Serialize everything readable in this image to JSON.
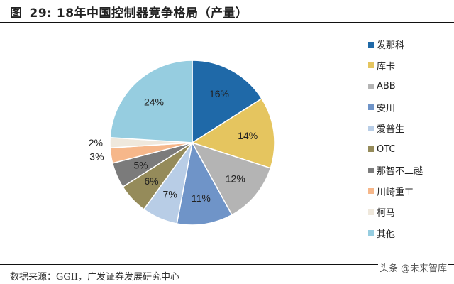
{
  "title": {
    "prefix": "图",
    "number": "29:",
    "text": "18年中国控制器竞争格局（产量）"
  },
  "source": "数据来源：GGII，广发证券发展研究中心",
  "watermark": "头条 @未来智库",
  "chart_data": {
    "type": "pie",
    "title": "18年中国控制器竞争格局（产量）",
    "start_angle_deg": 0,
    "direction": "clockwise",
    "legend_position": "right",
    "categories": [
      "发那科",
      "库卡",
      "ABB",
      "安川",
      "爱普生",
      "OTC",
      "那智不二越",
      "川崎重工",
      "柯马",
      "其他"
    ],
    "values": [
      16,
      14,
      12,
      11,
      7,
      6,
      5,
      3,
      2,
      24
    ],
    "labels": [
      "16%",
      "14%",
      "12%",
      "11%",
      "7%",
      "6%",
      "5%",
      "3%",
      "2%",
      "24%"
    ],
    "colors": [
      "#1f69a8",
      "#e5c55f",
      "#b4b4b4",
      "#6f94c8",
      "#b8cde6",
      "#958b5a",
      "#7b7b7b",
      "#f6b78a",
      "#efe8dc",
      "#96cde0"
    ],
    "unit": "%"
  },
  "legend": {
    "items": [
      {
        "label": "发那科",
        "color": "#1f69a8"
      },
      {
        "label": "库卡",
        "color": "#e5c55f"
      },
      {
        "label": "ABB",
        "color": "#b4b4b4"
      },
      {
        "label": "安川",
        "color": "#6f94c8"
      },
      {
        "label": "爱普生",
        "color": "#b8cde6"
      },
      {
        "label": "OTC",
        "color": "#958b5a"
      },
      {
        "label": "那智不二越",
        "color": "#7b7b7b"
      },
      {
        "label": "川崎重工",
        "color": "#f6b78a"
      },
      {
        "label": "柯马",
        "color": "#efe8dc"
      },
      {
        "label": "其他",
        "color": "#96cde0"
      }
    ]
  }
}
